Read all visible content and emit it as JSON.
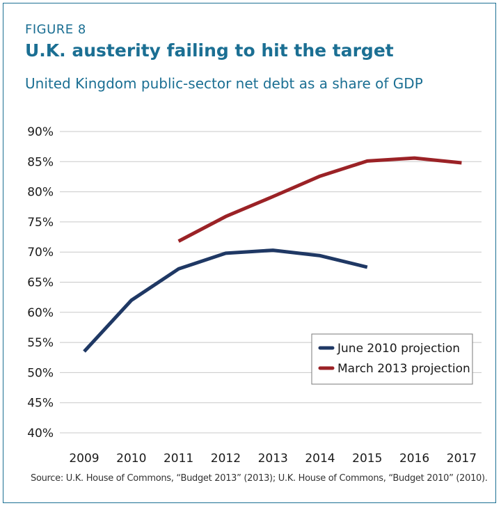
{
  "figure_label": "FIGURE 8",
  "title": "U.K. austerity failing to hit the target",
  "subtitle": "United Kingdom public-sector net debt as a share of GDP",
  "source": "Source: U.K. House of Commons, “Budget 2013” (2013); U.K. House of Commons, “Budget 2010” (2010).",
  "colors": {
    "frame": "#1b6f93",
    "june": "#1f3864",
    "march": "#9b2226",
    "grid": "#c8c8c8"
  },
  "chart_data": {
    "type": "line",
    "x": [
      2009,
      2010,
      2011,
      2012,
      2013,
      2014,
      2015,
      2016,
      2017
    ],
    "x_tick_labels": [
      "2009",
      "2010",
      "2011",
      "2012",
      "2013",
      "2014",
      "2015",
      "2016",
      "2017"
    ],
    "y_tick_labels": [
      "90%",
      "85%",
      "80%",
      "75%",
      "70%",
      "65%",
      "60%",
      "55%",
      "50%",
      "45%",
      "40%"
    ],
    "y_ticks": [
      90,
      85,
      80,
      75,
      70,
      65,
      60,
      55,
      50,
      45,
      40
    ],
    "ylim": [
      40,
      90
    ],
    "grid": true,
    "legend_position": "bottom-right",
    "series": [
      {
        "name": "June 2010 projection",
        "color": "#1f3864",
        "x": [
          2009,
          2010,
          2011,
          2012,
          2013,
          2014,
          2015
        ],
        "values": [
          53.5,
          62.0,
          67.2,
          69.8,
          70.3,
          69.4,
          67.5
        ]
      },
      {
        "name": "March 2013 projection",
        "color": "#9b2226",
        "x": [
          2011,
          2012,
          2013,
          2014,
          2015,
          2016,
          2017
        ],
        "values": [
          71.8,
          75.9,
          79.2,
          82.6,
          85.1,
          85.6,
          84.8
        ]
      }
    ]
  }
}
